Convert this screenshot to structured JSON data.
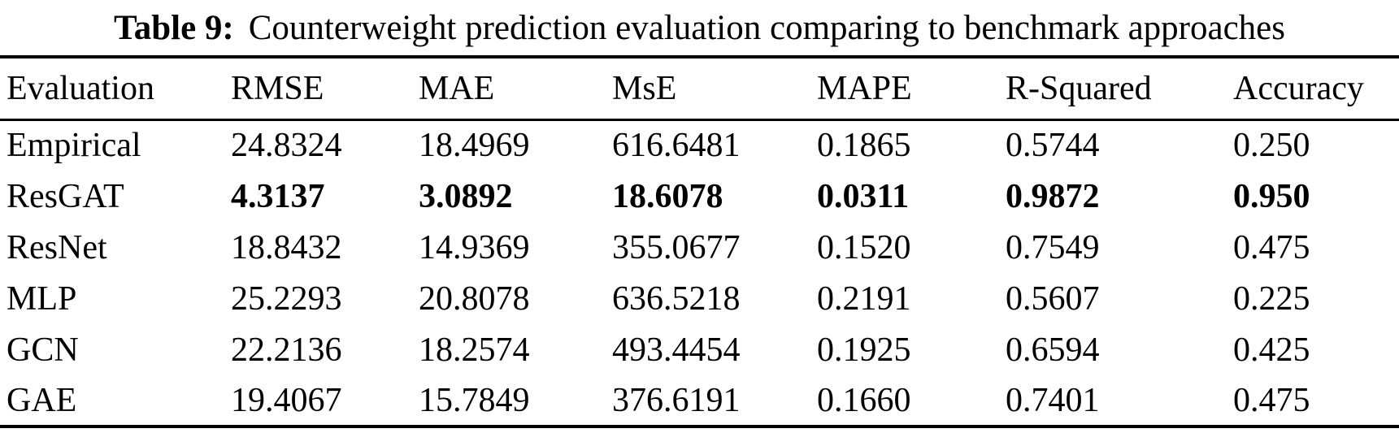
{
  "caption": {
    "label": "Table 9:",
    "text": "Counterweight prediction evaluation comparing to benchmark approaches"
  },
  "table": {
    "columns": [
      "Evaluation",
      "RMSE",
      "MAE",
      "MsE",
      "MAPE",
      "R-Squared",
      "Accuracy"
    ],
    "rows": [
      {
        "name": "Empirical",
        "bold": false,
        "values": [
          "24.8324",
          "18.4969",
          "616.6481",
          "0.1865",
          "0.5744",
          "0.250"
        ]
      },
      {
        "name": "ResGAT",
        "bold": true,
        "values": [
          "4.3137",
          "3.0892",
          "18.6078",
          "0.0311",
          "0.9872",
          "0.950"
        ]
      },
      {
        "name": "ResNet",
        "bold": false,
        "values": [
          "18.8432",
          "14.9369",
          "355.0677",
          "0.1520",
          "0.7549",
          "0.475"
        ]
      },
      {
        "name": "MLP",
        "bold": false,
        "values": [
          "25.2293",
          "20.8078",
          "636.5218",
          "0.2191",
          "0.5607",
          "0.225"
        ]
      },
      {
        "name": "GCN",
        "bold": false,
        "values": [
          "22.2136",
          "18.2574",
          "493.4454",
          "0.1925",
          "0.6594",
          "0.425"
        ]
      },
      {
        "name": "GAE",
        "bold": false,
        "values": [
          "19.4067",
          "15.7849",
          "376.6191",
          "0.1660",
          "0.7401",
          "0.475"
        ]
      }
    ],
    "text_color": "#000000",
    "background_color": "#ffffff"
  }
}
